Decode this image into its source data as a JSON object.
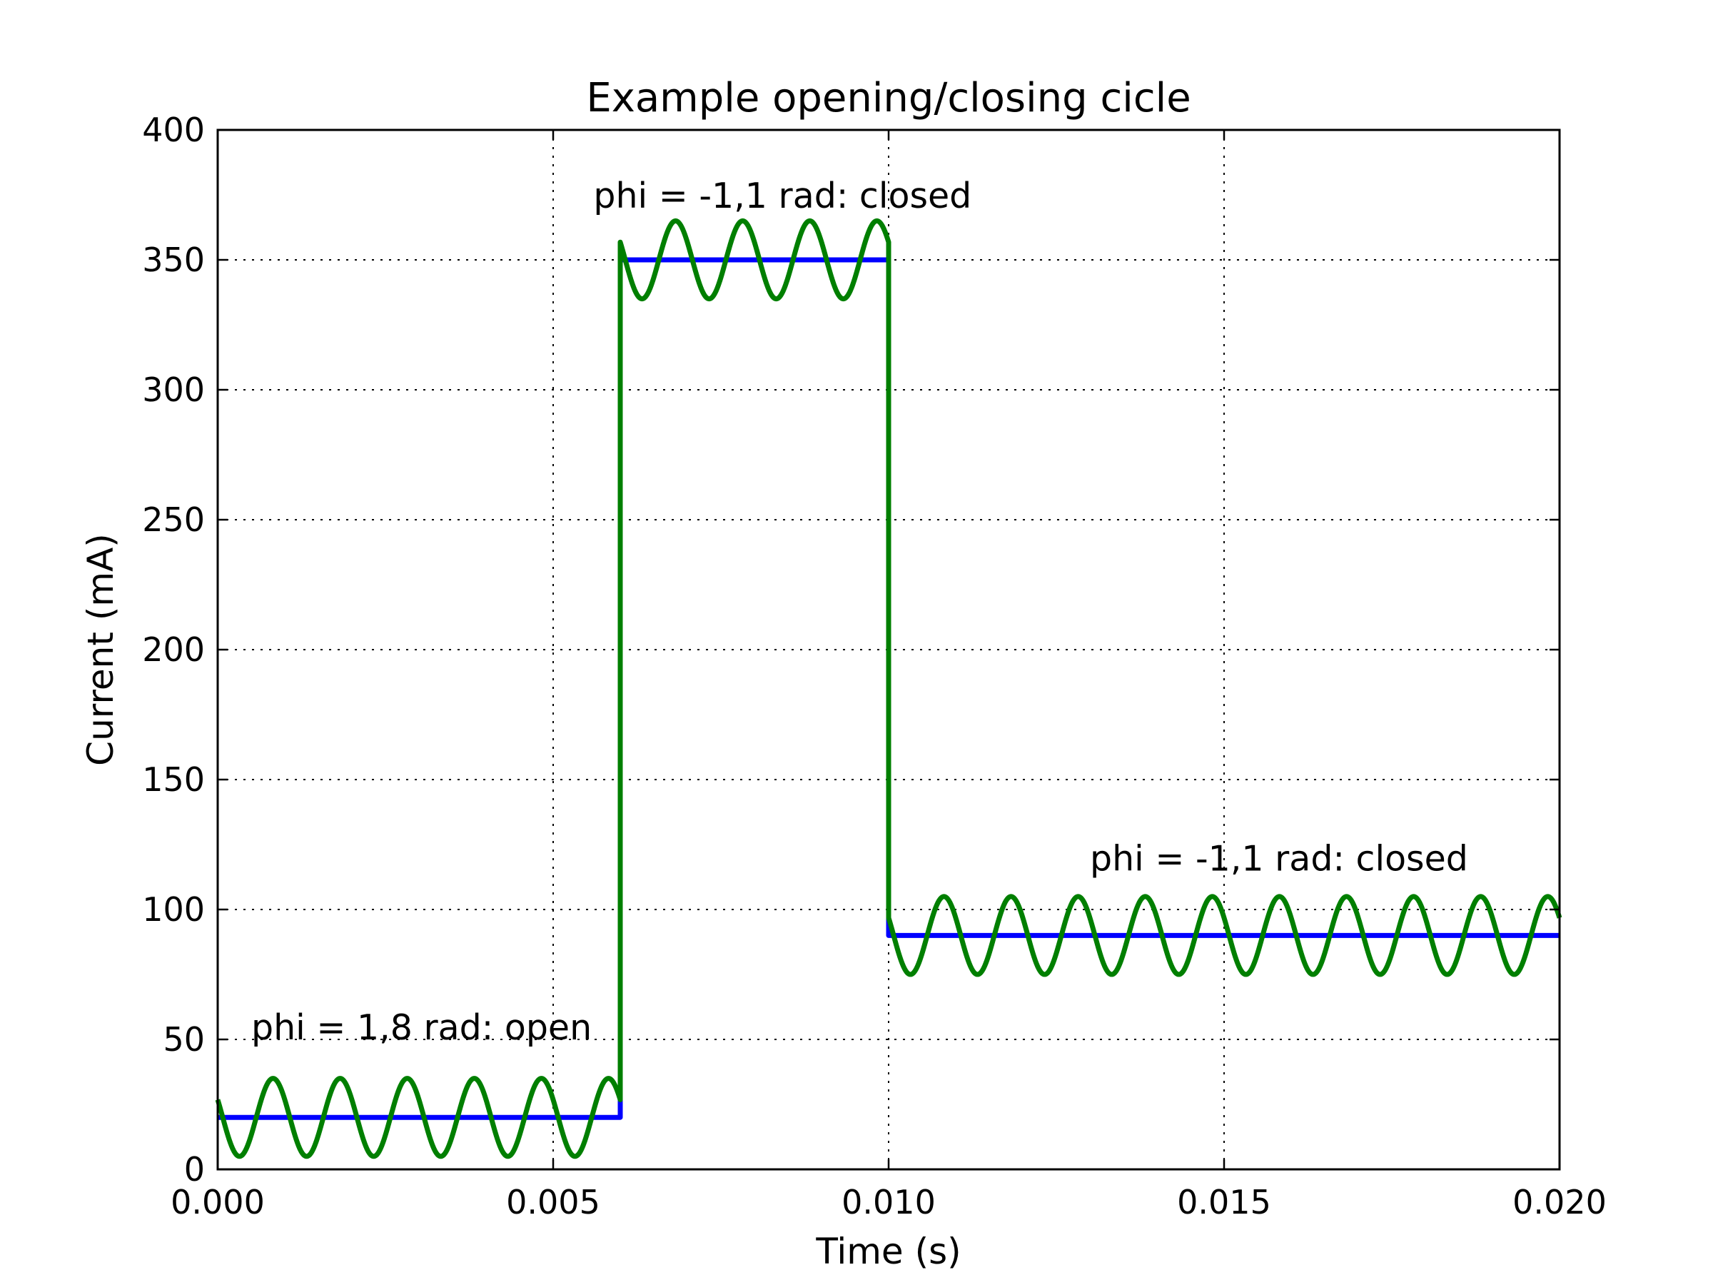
{
  "chart_data": {
    "type": "line",
    "title": "Example opening/closing cicle",
    "xlabel": "Time (s)",
    "ylabel": "Current (mA)",
    "xlim": [
      0.0,
      0.02
    ],
    "ylim": [
      0,
      400
    ],
    "xticks": [
      0.0,
      0.005,
      0.01,
      0.015,
      0.02
    ],
    "xtick_labels": [
      "0.000",
      "0.005",
      "0.010",
      "0.015",
      "0.020"
    ],
    "yticks": [
      0,
      50,
      100,
      150,
      200,
      250,
      300,
      350,
      400
    ],
    "ytick_labels": [
      "0",
      "50",
      "100",
      "150",
      "200",
      "250",
      "300",
      "350",
      "400"
    ],
    "grid": true,
    "series": [
      {
        "color": "#0000ff",
        "style": "step",
        "segments": [
          {
            "x_start": 0.0,
            "x_end": 0.006,
            "y": 20
          },
          {
            "x_start": 0.006,
            "x_end": 0.01,
            "y": 350
          },
          {
            "x_start": 0.01,
            "x_end": 0.02,
            "y": 90
          }
        ]
      },
      {
        "color": "#007f00",
        "style": "sine-on-step",
        "frequency_hz": 1000,
        "amplitude": 15,
        "phase_rad": 1.1,
        "segments": [
          {
            "x_start": 0.0,
            "x_end": 0.006,
            "y": 20
          },
          {
            "x_start": 0.006,
            "x_end": 0.01,
            "y": 350
          },
          {
            "x_start": 0.01,
            "x_end": 0.02,
            "y": 90
          }
        ]
      }
    ],
    "annotations": [
      {
        "text": "phi = 1,8 rad: open",
        "x": 0.0005,
        "y": 50
      },
      {
        "text": "phi = -1,1 rad: closed",
        "x": 0.0056,
        "y": 370
      },
      {
        "text": "phi = -1,1 rad: closed",
        "x": 0.013,
        "y": 115
      }
    ]
  }
}
